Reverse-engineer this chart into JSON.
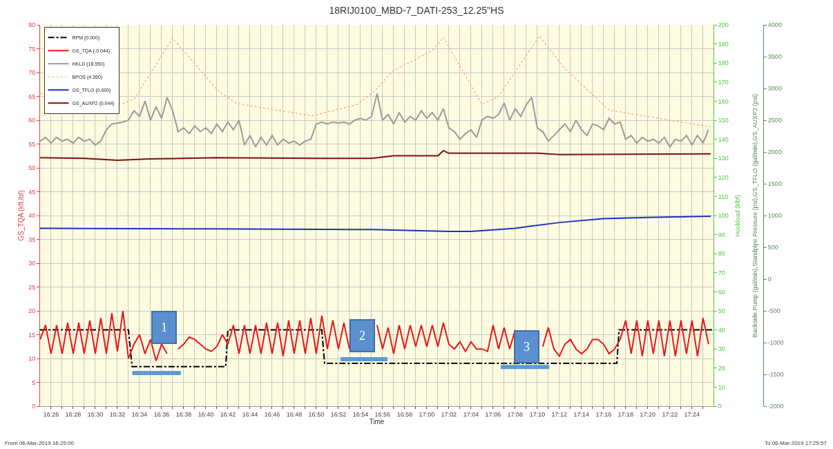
{
  "chart_data": {
    "type": "line",
    "title": "18RIJ0100_MBD-7_DATI-253_12.25\"HS",
    "xlabel": "Time",
    "ylabel": "GS_TQA (kft.lbf)",
    "y2label": "Hookload (klbf)",
    "y3label": "Backside Pump (gal/min),Standpipe Pressure (psi),GS_TFLO (gal/min),GS_AUXP2 (psi)",
    "x": [
      16.4167,
      16.425,
      16.4333,
      16.4417,
      16.45,
      16.4583,
      16.4667,
      16.475,
      16.4833,
      16.4917,
      16.5,
      16.5083,
      16.5167,
      16.525,
      16.5333,
      16.5417,
      16.55,
      16.5583,
      16.5667,
      16.575,
      16.5833,
      16.5917,
      16.6,
      16.6083,
      16.6167,
      16.625,
      16.6333,
      16.6417,
      16.65,
      16.6583,
      16.6667,
      16.675,
      16.6833,
      16.6917,
      16.7,
      16.7083,
      16.7167,
      16.725,
      16.7333,
      16.7417,
      16.75,
      16.7583,
      16.7667,
      16.775,
      16.7833,
      16.7917,
      16.8,
      16.8083,
      16.8167,
      16.825,
      16.8333,
      16.8417,
      16.85,
      16.8583,
      16.8667,
      16.875,
      16.8833,
      16.8917,
      16.9,
      16.9083,
      16.9167,
      16.925,
      16.9333,
      16.9417,
      16.95,
      16.9583,
      16.9667,
      16.975,
      16.9833,
      16.9917,
      17.0,
      17.0083,
      17.0167,
      17.025,
      17.0333,
      17.0417,
      17.05,
      17.0583,
      17.0667,
      17.075,
      17.0833,
      17.0917,
      17.1,
      17.1083,
      17.1167,
      17.125,
      17.1333,
      17.1417,
      17.15,
      17.1583,
      17.1667,
      17.175,
      17.1833,
      17.1917,
      17.2,
      17.2083,
      17.2167,
      17.225,
      17.2333,
      17.2417,
      17.25,
      17.2583,
      17.2667,
      17.275,
      17.2833,
      17.2917,
      17.3,
      17.3083,
      17.3167,
      17.325,
      17.3333,
      17.3417,
      17.35,
      17.3583,
      17.3667,
      17.375,
      17.3833,
      17.3917,
      17.4,
      17.4083,
      17.4167,
      17.425
    ],
    "series": [
      {
        "name": "RPM (0.000)",
        "color": "#000000",
        "line_style": "dashed",
        "x": [
          16.4167,
          16.55,
          16.5555,
          16.6967,
          16.7,
          16.8417,
          16.8458,
          17.2867,
          17.29,
          17.4317
        ],
        "values": [
          16,
          16,
          8.3,
          8.3,
          16,
          16,
          9,
          9,
          16,
          16
        ]
      },
      {
        "name": "GS_TQA (-0.044)",
        "color": "#e8161b",
        "values": [
          14,
          17,
          11,
          17,
          11,
          17.5,
          11,
          17.5,
          11,
          18,
          11,
          18.5,
          11,
          19.5,
          11.5,
          20,
          10,
          13,
          15,
          11,
          14,
          9.5,
          13,
          11,
          null,
          12,
          13,
          14.5,
          14,
          13,
          12,
          11.5,
          12.5,
          15,
          13,
          17,
          11,
          17,
          11,
          17,
          11,
          17.5,
          11,
          17.5,
          10.5,
          18,
          11,
          18,
          11,
          18.5,
          11,
          19,
          12,
          18,
          12,
          17.5,
          12,
          null,
          null,
          null,
          null,
          17,
          12,
          16.5,
          11,
          17,
          12,
          17,
          12.5,
          17,
          12.5,
          17,
          12.5,
          17.5,
          13,
          12,
          13.5,
          11.5,
          13.5,
          12,
          12,
          11.5,
          17,
          12,
          16.5,
          12,
          16,
          null,
          null,
          null,
          null,
          12.5,
          16.5,
          12,
          10.5,
          13,
          14,
          12,
          11,
          12,
          14,
          14,
          13,
          11,
          12,
          14,
          18,
          11,
          18,
          10.5,
          18,
          11,
          18,
          10.5,
          18,
          10.5,
          18,
          11,
          18,
          10.5,
          18.5,
          13
        ]
      },
      {
        "name": "HKLD (18.550)",
        "color": "#9a9a9a",
        "axis": "y2",
        "values": [
          139,
          141,
          138,
          141,
          139,
          140,
          138,
          141,
          139,
          140,
          137,
          139,
          145,
          148,
          148.5,
          149,
          150,
          155,
          152,
          160,
          150,
          157,
          151,
          162,
          155,
          144,
          146,
          143,
          147,
          144,
          146,
          143,
          148,
          144,
          149,
          145,
          150,
          137,
          142,
          136,
          141,
          137,
          142,
          137,
          140,
          138,
          139,
          137,
          139,
          140,
          148,
          149,
          148,
          149,
          148.5,
          149,
          148,
          150,
          151,
          150,
          152,
          164,
          150,
          153,
          148,
          154,
          149,
          152,
          150,
          155,
          151,
          154,
          150,
          156,
          146,
          144,
          140,
          143,
          145,
          141,
          150,
          152,
          151,
          153,
          159,
          150,
          156,
          152,
          158,
          162,
          146,
          144,
          139,
          142,
          145,
          148,
          144,
          150,
          145,
          142,
          148,
          147,
          145,
          151,
          148,
          149,
          140,
          142,
          138,
          141,
          139,
          140,
          138,
          141,
          136,
          140,
          139,
          142,
          137,
          142,
          138,
          145
        ]
      },
      {
        "name": "BPOS (4.360)",
        "color": "#f4a582",
        "line_style": "dotted",
        "x": [
          16.4167,
          16.5417,
          16.5583,
          16.6167,
          16.685,
          16.7133,
          16.8267,
          16.895,
          16.9217,
          16.95,
          16.9783,
          17.01,
          17.025,
          17.0833,
          17.1083,
          17.17,
          17.205,
          17.275,
          17.4283
        ],
        "values": [
          65.6,
          63.5,
          64.4,
          77.2,
          66.2,
          63.5,
          60.9,
          63.3,
          66.2,
          70.5,
          72.4,
          74.8,
          77.4,
          63.3,
          65,
          77.7,
          71.3,
          62.1,
          58.6
        ]
      },
      {
        "name": "GS_TFLO (0.000)",
        "color": "#1f2fc0",
        "axis": "y3",
        "x": [
          16.4167,
          16.6667,
          16.9167,
          17.0333,
          17.0667,
          17.1333,
          17.2,
          17.2667,
          17.3333,
          17.4283
        ],
        "values": [
          800,
          790,
          780,
          750,
          750,
          800,
          890,
          950,
          970,
          990
        ]
      },
      {
        "name": "GS_AUXP2 (0.044)",
        "color": "#7b1010",
        "axis": "y3",
        "x": [
          16.4167,
          16.4833,
          16.5333,
          16.5833,
          16.6833,
          16.8333,
          16.9167,
          16.95,
          17.0167,
          17.025,
          17.0333,
          17.1667,
          17.2,
          17.4283
        ],
        "values": [
          1910,
          1900,
          1870,
          1890,
          1910,
          1900,
          1900,
          1940,
          1940,
          2020,
          1980,
          1980,
          1960,
          1970
        ]
      }
    ],
    "xlim": [
      16.4167,
      17.4325
    ],
    "xticks": [
      {
        "value": 16.4333,
        "label": "16:26"
      },
      {
        "value": 16.45,
        "label": null
      },
      {
        "value": 16.4667,
        "label": "16:28"
      },
      {
        "value": 16.4833,
        "label": null
      },
      {
        "value": 16.5,
        "label": "16:30"
      },
      {
        "value": 16.5167,
        "label": null
      },
      {
        "value": 16.5333,
        "label": "16:32"
      },
      {
        "value": 16.55,
        "label": null
      },
      {
        "value": 16.5667,
        "label": "16:34"
      },
      {
        "value": 16.5833,
        "label": null
      },
      {
        "value": 16.6,
        "label": "16:36"
      },
      {
        "value": 16.6167,
        "label": null
      },
      {
        "value": 16.6333,
        "label": "16:38"
      },
      {
        "value": 16.65,
        "label": null
      },
      {
        "value": 16.6667,
        "label": "16:40"
      },
      {
        "value": 16.6833,
        "label": null
      },
      {
        "value": 16.7,
        "label": "16:42"
      },
      {
        "value": 16.7167,
        "label": null
      },
      {
        "value": 16.7333,
        "label": "16:44"
      },
      {
        "value": 16.75,
        "label": null
      },
      {
        "value": 16.7667,
        "label": "16:46"
      },
      {
        "value": 16.7833,
        "label": null
      },
      {
        "value": 16.8,
        "label": "16:48"
      },
      {
        "value": 16.8167,
        "label": null
      },
      {
        "value": 16.8333,
        "label": "16:50"
      },
      {
        "value": 16.85,
        "label": null
      },
      {
        "value": 16.8667,
        "label": "16:52"
      },
      {
        "value": 16.8833,
        "label": null
      },
      {
        "value": 16.9,
        "label": "16:54"
      },
      {
        "value": 16.9167,
        "label": null
      },
      {
        "value": 16.9333,
        "label": "16:56"
      },
      {
        "value": 16.95,
        "label": null
      },
      {
        "value": 16.9667,
        "label": "16:58"
      },
      {
        "value": 16.9833,
        "label": null
      },
      {
        "value": 17.0,
        "label": "17:00"
      },
      {
        "value": 17.0167,
        "label": null
      },
      {
        "value": 17.0333,
        "label": "17:02"
      },
      {
        "value": 17.05,
        "label": null
      },
      {
        "value": 17.0667,
        "label": "17:04"
      },
      {
        "value": 17.0833,
        "label": null
      },
      {
        "value": 17.1,
        "label": "17:06"
      },
      {
        "value": 17.1167,
        "label": null
      },
      {
        "value": 17.1333,
        "label": "17:08"
      },
      {
        "value": 17.15,
        "label": null
      },
      {
        "value": 17.1667,
        "label": "17:10"
      },
      {
        "value": 17.1833,
        "label": null
      },
      {
        "value": 17.2,
        "label": "17:12"
      },
      {
        "value": 17.2167,
        "label": null
      },
      {
        "value": 17.2333,
        "label": "17:14"
      },
      {
        "value": 17.25,
        "label": null
      },
      {
        "value": 17.2667,
        "label": "17:16"
      },
      {
        "value": 17.2833,
        "label": null
      },
      {
        "value": 17.3,
        "label": "17:18"
      },
      {
        "value": 17.3167,
        "label": null
      },
      {
        "value": 17.3333,
        "label": "17:20"
      },
      {
        "value": 17.35,
        "label": null
      },
      {
        "value": 17.3667,
        "label": "17:22"
      },
      {
        "value": 17.3833,
        "label": null
      },
      {
        "value": 17.4,
        "label": "17:24"
      },
      {
        "value": 17.4167,
        "label": null
      }
    ],
    "ylim": [
      0,
      80
    ],
    "yticks": [
      0,
      5,
      10,
      15,
      20,
      25,
      30,
      35,
      40,
      45,
      50,
      55,
      60,
      65,
      70,
      75,
      80
    ],
    "y2lim": [
      0,
      200
    ],
    "y2ticks": [
      0,
      10,
      20,
      30,
      40,
      50,
      60,
      70,
      80,
      90,
      100,
      110,
      120,
      130,
      140,
      150,
      160,
      170,
      180,
      190,
      200
    ],
    "y3lim": [
      -2000,
      4000
    ],
    "y3ticks": [
      -2000,
      -1500,
      -1000,
      -500,
      0,
      500,
      1000,
      1500,
      2000,
      2500,
      3000,
      3500,
      4000
    ],
    "annotations": [
      "1",
      "2",
      "3",
      "From 06-Mar-2019 16:25:00",
      "To 06-Mar-2019 17:25:57"
    ],
    "grid": true,
    "legend": "top left",
    "marker": "none"
  }
}
